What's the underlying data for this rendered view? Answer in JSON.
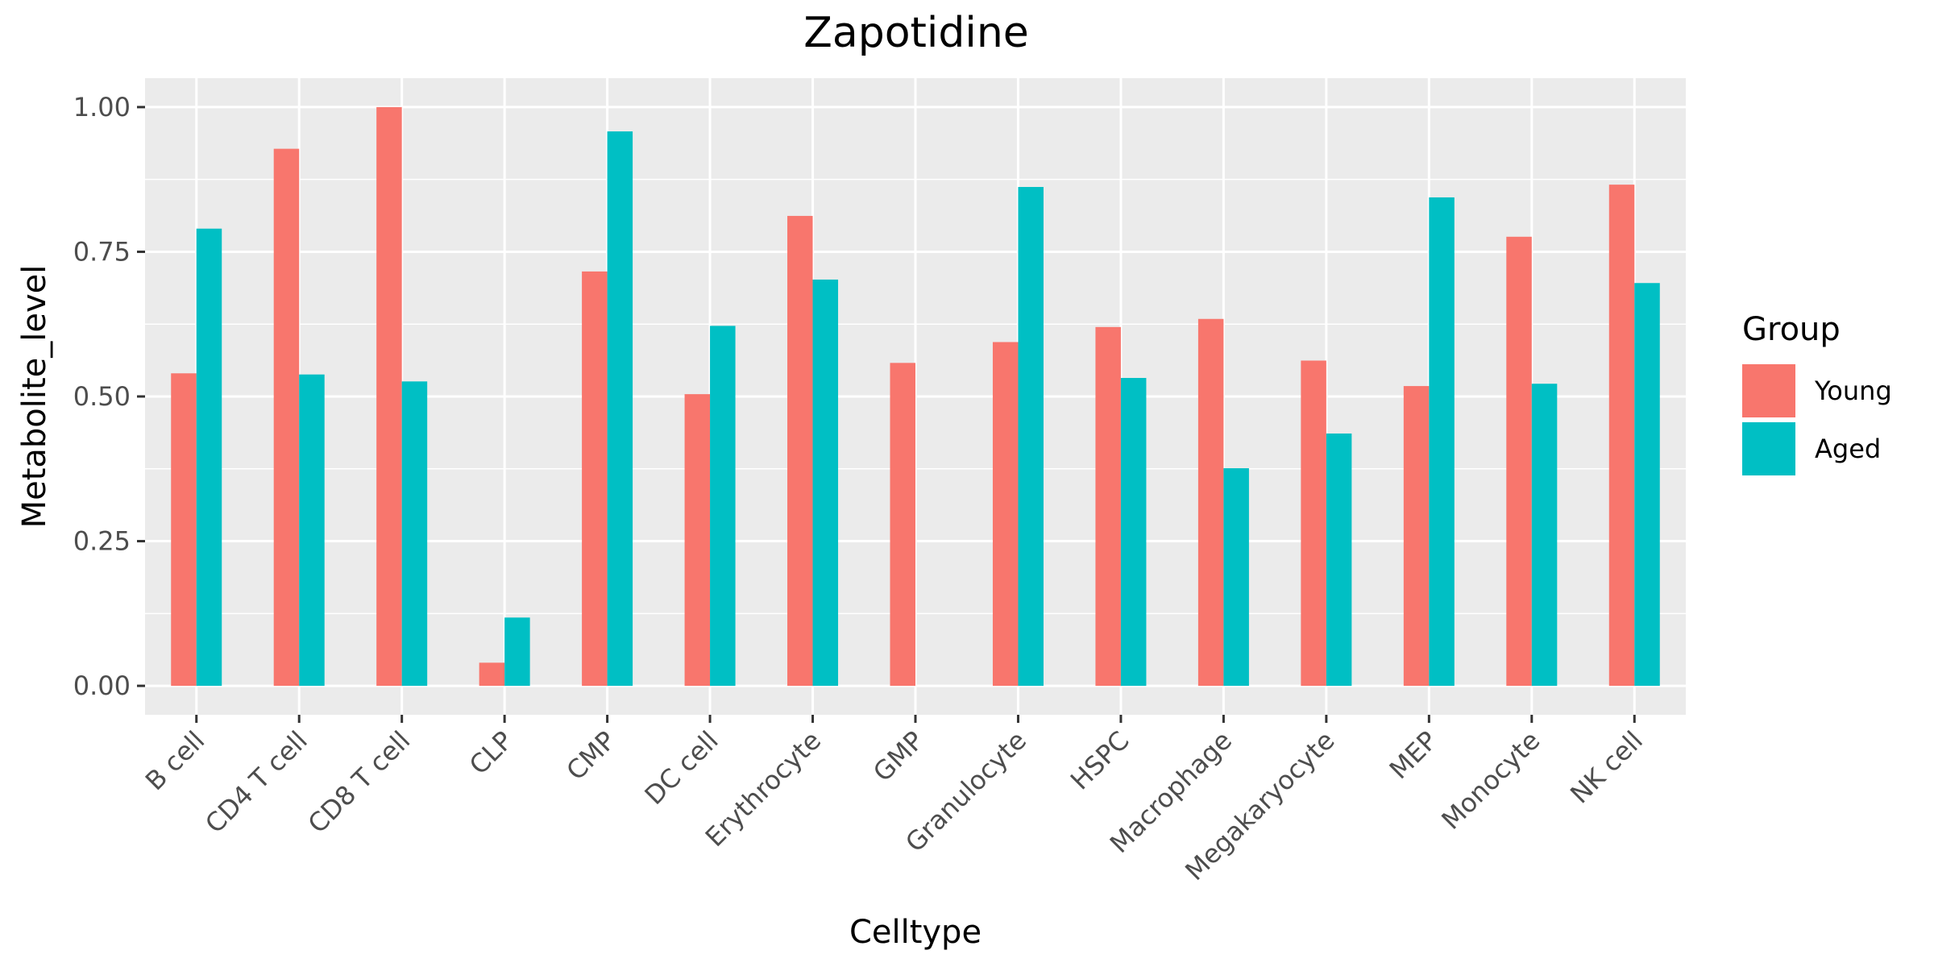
{
  "chart_data": {
    "type": "bar",
    "title": "Zapotidine",
    "xlabel": "Celltype",
    "ylabel": "Metabolite_level",
    "ylim": [
      -0.05,
      1.05
    ],
    "yticks": [
      0.0,
      0.25,
      0.5,
      0.75,
      1.0
    ],
    "ytick_labels": [
      "0.00",
      "0.25",
      "0.50",
      "0.75",
      "1.00"
    ],
    "grid": true,
    "legend_title": "Group",
    "legend_position": "right",
    "categories": [
      "B cell",
      "CD4 T cell",
      "CD8 T cell",
      "CLP",
      "CMP",
      "DC cell",
      "Erythrocyte",
      "GMP",
      "Granulocyte",
      "HSPC",
      "Macrophage",
      "Megakaryocyte",
      "MEP",
      "Monocyte",
      "NK cell"
    ],
    "series": [
      {
        "name": "Young",
        "color": "#F8766D",
        "values": [
          0.54,
          0.928,
          1.0,
          0.04,
          0.716,
          0.504,
          0.812,
          0.558,
          0.594,
          0.62,
          0.634,
          0.562,
          0.518,
          0.776,
          0.866
        ]
      },
      {
        "name": "Aged",
        "color": "#00BFC4",
        "values": [
          0.79,
          0.538,
          0.526,
          0.118,
          0.958,
          0.622,
          0.702,
          null,
          0.862,
          0.532,
          0.376,
          0.436,
          0.844,
          0.522,
          0.696
        ]
      }
    ]
  }
}
